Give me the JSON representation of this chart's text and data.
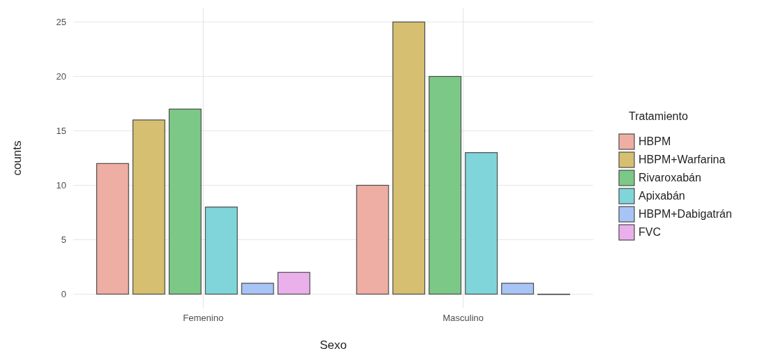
{
  "chart_data": {
    "type": "bar",
    "xlabel": "Sexo",
    "ylabel": "counts",
    "legend_title": "Tratamiento",
    "categories": [
      "Femenino",
      "Masculino"
    ],
    "series": [
      {
        "name": "HBPM",
        "color": "#efaea3",
        "values": [
          12,
          10
        ]
      },
      {
        "name": "HBPM+Warfarina",
        "color": "#d6bf70",
        "values": [
          16,
          25
        ]
      },
      {
        "name": "Rivaroxabán",
        "color": "#7cc887",
        "values": [
          17,
          20
        ]
      },
      {
        "name": "Apixabán",
        "color": "#7fd5d9",
        "values": [
          8,
          13
        ]
      },
      {
        "name": "HBPM+Dabigatrán",
        "color": "#a7c4f5",
        "values": [
          1,
          1
        ]
      },
      {
        "name": "FVC",
        "color": "#eab0ec",
        "values": [
          2,
          0
        ]
      }
    ],
    "ylim": [
      -1.25,
      26.25
    ],
    "yticks": [
      0,
      5,
      10,
      15,
      20,
      25
    ],
    "grid": true,
    "legend": "right"
  }
}
